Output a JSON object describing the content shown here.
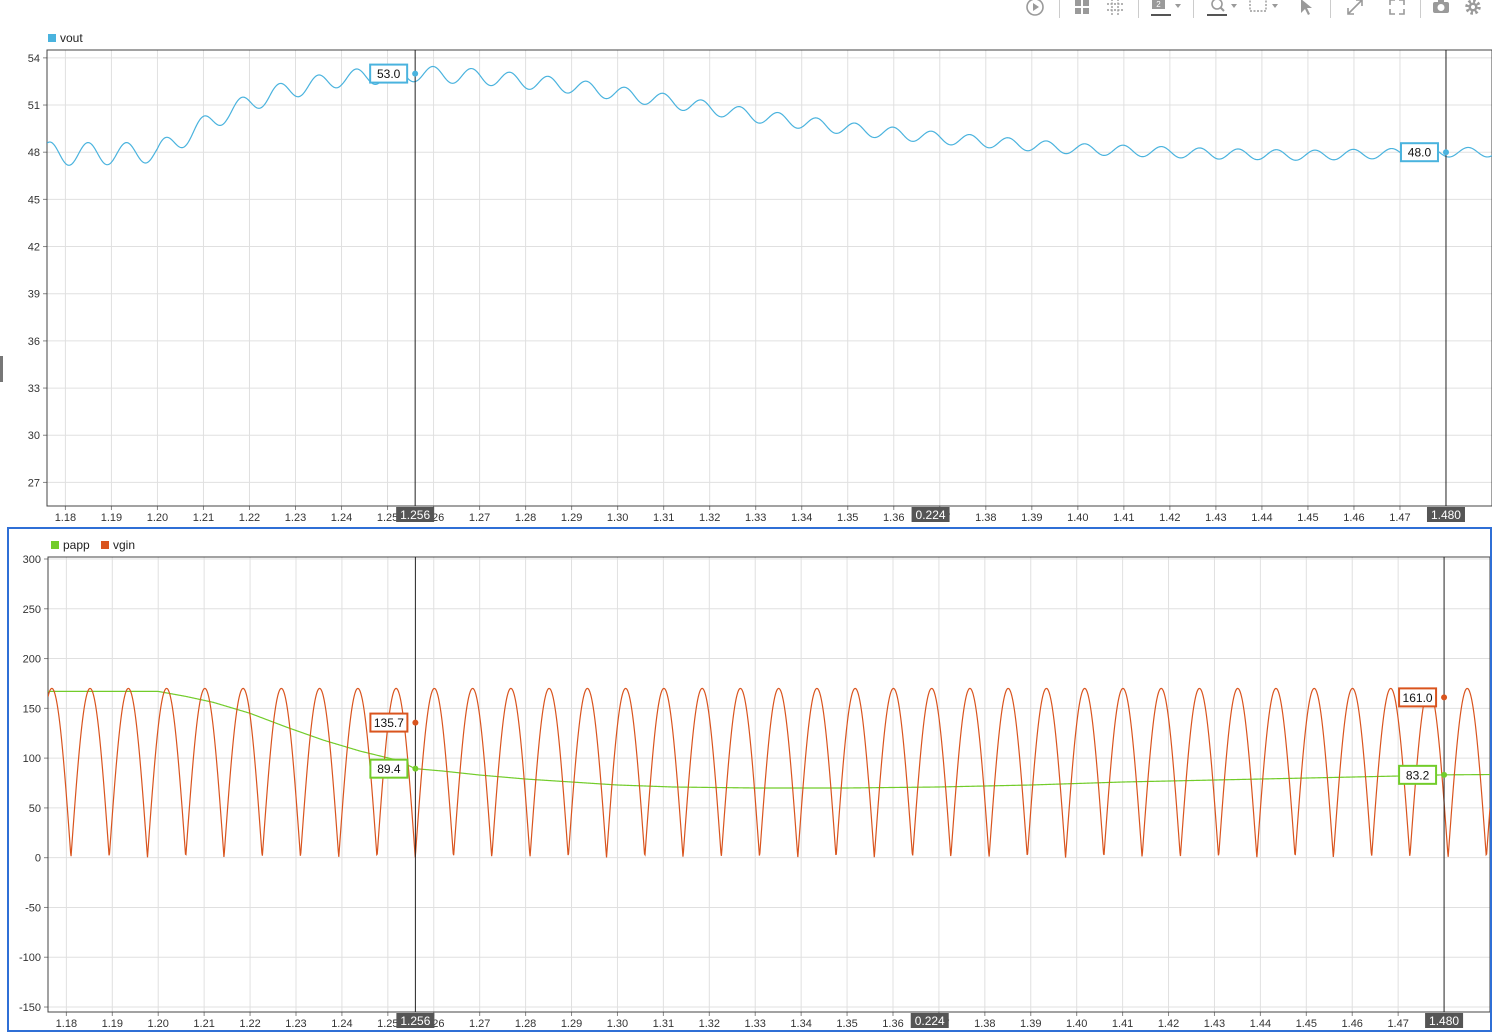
{
  "toolbar": {
    "icons": [
      "play-circle-icon",
      "layout-grid-icon",
      "grid-settings-icon",
      "panel-count-icon",
      "zoom-icon",
      "zoom-box-icon",
      "pointer-icon",
      "expand-icon",
      "fullscreen-icon",
      "camera-icon",
      "gear-icon"
    ],
    "panel_count": "2"
  },
  "colors": {
    "vout": "#4ab3de",
    "papp": "#72cc2a",
    "vgin": "#d9541e",
    "cursor_badge": "#555555",
    "active_panel_border": "#2f6fd6"
  },
  "chart_data": [
    {
      "type": "line",
      "legend": [
        "vout"
      ],
      "legend_placement": "top-left",
      "grid": true,
      "xlim": [
        1.176,
        1.49
      ],
      "ylim": [
        25.5,
        54.5
      ],
      "x_ticks": [
        "1.18",
        "1.19",
        "1.20",
        "1.21",
        "1.22",
        "1.23",
        "1.24",
        "1.25",
        "1.26",
        "1.27",
        "1.28",
        "1.29",
        "1.30",
        "1.31",
        "1.32",
        "1.33",
        "1.34",
        "1.35",
        "1.36",
        "1.37",
        "1.38",
        "1.39",
        "1.40",
        "1.41",
        "1.42",
        "1.43",
        "1.44",
        "1.45",
        "1.46",
        "1.47"
      ],
      "y_ticks": [
        "54",
        "51",
        "48",
        "45",
        "42",
        "39",
        "36",
        "33",
        "30",
        "27"
      ],
      "series": [
        {
          "name": "vout",
          "ripple_period": 0.00833,
          "envelope_x": [
            1.176,
            1.19,
            1.2,
            1.206,
            1.215,
            1.225,
            1.24,
            1.256,
            1.27,
            1.29,
            1.31,
            1.33,
            1.35,
            1.37,
            1.4,
            1.43,
            1.45,
            1.48,
            1.49
          ],
          "envelope_y": [
            47.9,
            47.9,
            48.0,
            49.0,
            50.5,
            51.7,
            52.7,
            53.0,
            52.8,
            52.2,
            51.3,
            50.3,
            49.5,
            48.9,
            48.2,
            47.9,
            47.8,
            48.0,
            48.0
          ],
          "ripple_amplitude_x": [
            1.176,
            1.2,
            1.23,
            1.3,
            1.4,
            1.49
          ],
          "ripple_amplitude": [
            0.75,
            0.65,
            0.55,
            0.45,
            0.35,
            0.3
          ]
        }
      ],
      "cursors": [
        {
          "x": 1.256,
          "label": "1.256",
          "values": [
            {
              "series": "vout",
              "value": "53.0"
            }
          ]
        },
        {
          "x": 1.48,
          "label": "1.480",
          "values": [
            {
              "series": "vout",
              "value": "48.0"
            }
          ]
        }
      ],
      "delta_label": "0.224"
    },
    {
      "type": "line",
      "legend": [
        "papp",
        "vgin"
      ],
      "legend_placement": "top-left",
      "grid": true,
      "xlim": [
        1.176,
        1.49
      ],
      "ylim": [
        -155,
        302
      ],
      "x_ticks": [
        "1.18",
        "1.19",
        "1.20",
        "1.21",
        "1.22",
        "1.23",
        "1.24",
        "1.25",
        "1.26",
        "1.27",
        "1.28",
        "1.29",
        "1.30",
        "1.31",
        "1.32",
        "1.33",
        "1.34",
        "1.35",
        "1.36",
        "1.37",
        "1.38",
        "1.39",
        "1.40",
        "1.41",
        "1.42",
        "1.43",
        "1.44",
        "1.45",
        "1.46",
        "1.47"
      ],
      "y_ticks": [
        "300",
        "250",
        "200",
        "150",
        "100",
        "50",
        "0",
        "-50",
        "-100",
        "-150"
      ],
      "series": [
        {
          "name": "papp",
          "x": [
            1.176,
            1.2,
            1.206,
            1.212,
            1.22,
            1.228,
            1.236,
            1.244,
            1.252,
            1.256,
            1.262,
            1.27,
            1.28,
            1.29,
            1.3,
            1.312,
            1.33,
            1.35,
            1.37,
            1.39,
            1.41,
            1.43,
            1.45,
            1.47,
            1.48,
            1.49
          ],
          "y": [
            167,
            167,
            162,
            156,
            145,
            131,
            118,
            107,
            98,
            89.4,
            87,
            83,
            79,
            76,
            73,
            71,
            70,
            70,
            71,
            73,
            76,
            78,
            80,
            82,
            83.2,
            83.5
          ]
        },
        {
          "name": "vgin",
          "form": "rectified-sine",
          "peak": 170,
          "period": 0.00833,
          "zero_phase_x": 1.181
        }
      ],
      "cursors": [
        {
          "x": 1.256,
          "label": "1.256",
          "values": [
            {
              "series": "vgin",
              "value": "135.7"
            },
            {
              "series": "papp",
              "value": "89.4"
            }
          ]
        },
        {
          "x": 1.48,
          "label": "1.480",
          "values": [
            {
              "series": "vgin",
              "value": "161.0"
            },
            {
              "series": "papp",
              "value": "83.2"
            }
          ]
        }
      ],
      "delta_label": "0.224"
    }
  ]
}
